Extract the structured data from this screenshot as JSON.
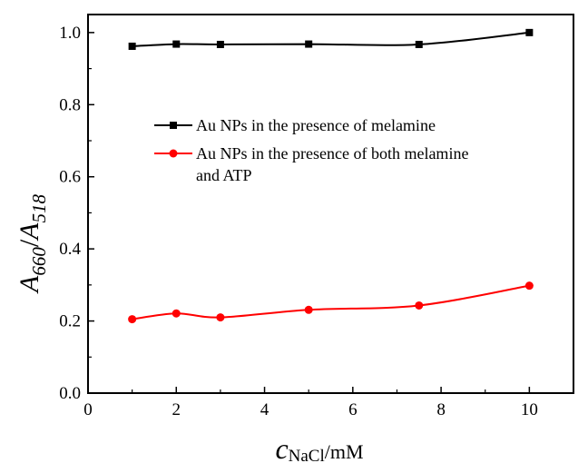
{
  "chart_data": {
    "type": "line",
    "x_axis": {
      "label_main": "c",
      "label_sub": "NaCl",
      "label_unit": "/mM",
      "range": [
        0,
        11
      ],
      "ticks": [
        0,
        2,
        4,
        6,
        8,
        10
      ],
      "tick_labels": [
        "0",
        "2",
        "4",
        "6",
        "8",
        "10"
      ]
    },
    "y_axis": {
      "label_a1": "A",
      "label_sub1": "660",
      "label_slash": "/",
      "label_a2": "A",
      "label_sub2": "518",
      "range": [
        0.0,
        1.05
      ],
      "ticks": [
        0.0,
        0.2,
        0.4,
        0.6,
        0.8,
        1.0
      ],
      "tick_labels": [
        "0.0",
        "0.2",
        "0.4",
        "0.6",
        "0.8",
        "1.0"
      ]
    },
    "grid": false,
    "legend_position": "center-left",
    "series": [
      {
        "name": "Au NPs in the presence of melamine",
        "color": "#000000",
        "marker": "square",
        "x": [
          1,
          2,
          3,
          5,
          7.5,
          10
        ],
        "y": [
          0.962,
          0.968,
          0.967,
          0.968,
          0.967,
          1.0
        ]
      },
      {
        "name": "Au NPs in the presence of both melamine and ATP",
        "legend_lines": [
          "Au NPs in the presence of both melamine",
          "and ATP"
        ],
        "color": "#ff0000",
        "marker": "circle",
        "x": [
          1,
          2,
          3,
          5,
          7.5,
          10
        ],
        "y": [
          0.205,
          0.221,
          0.21,
          0.231,
          0.243,
          0.298
        ]
      }
    ]
  }
}
